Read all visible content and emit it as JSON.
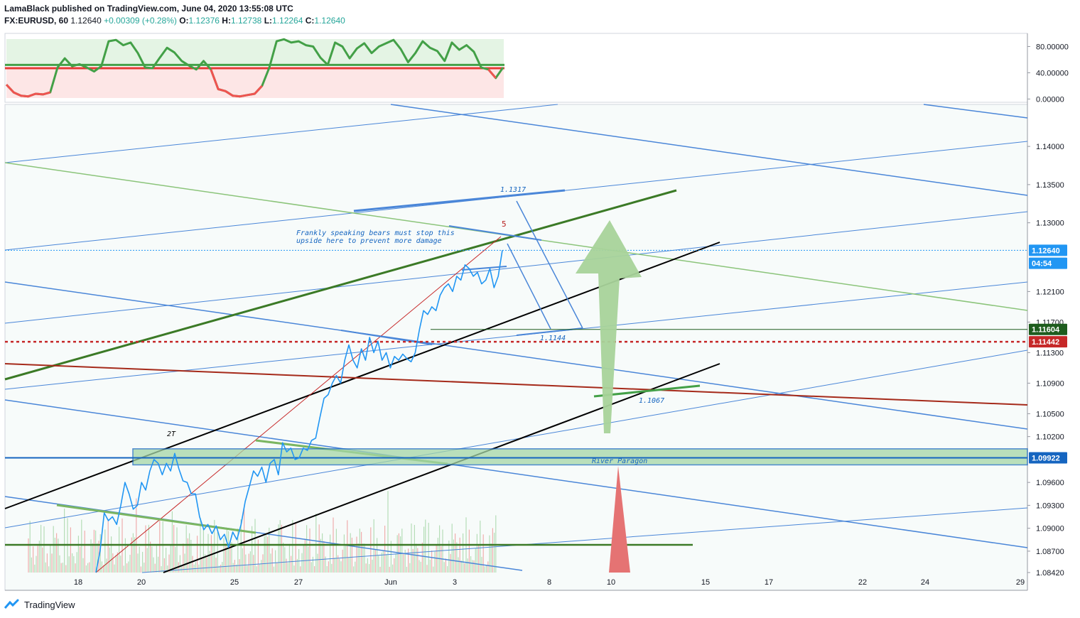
{
  "header": {
    "published": "LamaBlack published on TradingView.com, June 04, 2020 13:55:08 UTC",
    "symbol": "FX:EURUSD, 60",
    "last": "1.12640",
    "change": "+0.00309 (+0.28%)",
    "o_label": "O:",
    "o": "1.12376",
    "h_label": "H:",
    "h": "1.12738",
    "l_label": "L:",
    "l": "1.12264",
    "c_label": "C:",
    "c": "1.12640"
  },
  "footer": {
    "brand": "TradingView"
  },
  "chart_data": {
    "type": "line",
    "symbol": "FX:EURUSD, 60",
    "indicator": {
      "ylim": [
        -5,
        100
      ],
      "ticks": [
        "80.00000",
        "40.00000",
        "0.00000"
      ],
      "tick_values": [
        80,
        40,
        0
      ],
      "upper_level": 52,
      "lower_level": 47
    },
    "price_axis": {
      "ylim": [
        1.0842,
        1.1455
      ],
      "ticks": [
        "1.14000",
        "1.13500",
        "1.13000",
        "1.12100",
        "1.11700",
        "1.11300",
        "1.10900",
        "1.10500",
        "1.10200",
        "1.09600",
        "1.09300",
        "1.09000",
        "1.08700",
        "1.08420"
      ],
      "tick_values": [
        1.14,
        1.135,
        1.13,
        1.121,
        1.117,
        1.113,
        1.109,
        1.105,
        1.102,
        1.096,
        1.093,
        1.09,
        1.087,
        1.0842
      ]
    },
    "price_labels": [
      {
        "text": "1.12640",
        "value": 1.1264,
        "color": "#2196f3"
      },
      {
        "text": "04:54",
        "value": 1.1247,
        "color": "#2196f3"
      },
      {
        "text": "1.11604",
        "value": 1.11604,
        "color": "#1e5c1e"
      },
      {
        "text": "1.11442",
        "value": 1.11442,
        "color": "#c62828"
      },
      {
        "text": "1.09922",
        "value": 1.09922,
        "color": "#1565c0"
      }
    ],
    "x_axis": {
      "ticks": [
        "18",
        "20",
        "25",
        "27",
        "Jun",
        "3",
        "8",
        "10",
        "15",
        "17",
        "22",
        "24",
        "29"
      ]
    },
    "annotations": [
      {
        "text": "1.1317",
        "color": "#1565c0"
      },
      {
        "text": "5",
        "color": "#b71c1c"
      },
      {
        "text": "Frankly speaking bears must stop this",
        "color": "#1565c0"
      },
      {
        "text": "upside here to prevent more damage",
        "color": "#1565c0"
      },
      {
        "text": "1.1144",
        "color": "#1565c0"
      },
      {
        "text": "1.1067",
        "color": "#1565c0"
      },
      {
        "text": "2T",
        "color": "#000000"
      },
      {
        "text": "River Paragon",
        "color": "#1565c0"
      }
    ],
    "levels": {
      "last_price": 1.1264,
      "resistance": 1.11604,
      "support_dotted": 1.11442,
      "zone_top": 1.1004,
      "zone_bottom": 1.0983,
      "zone_line": 1.09922,
      "horizontal_green": 1.0873
    },
    "price_series": [
      [
        1.0842,
        1.087,
        1.092,
        1.091,
        1.0915,
        1.0905,
        1.093,
        1.096,
        1.0945,
        1.0925,
        1.093,
        1.096,
        1.095,
        1.0975,
        1.099,
        1.0985,
        1.097,
        1.0985,
        1.0975,
        1.0998,
        1.0978,
        1.0962,
        1.096,
        1.0945,
        1.0945,
        1.0915,
        1.0898,
        1.0905,
        1.0893,
        1.0903,
        1.0885,
        1.0892,
        1.0875,
        1.0895,
        1.0885,
        1.0905,
        1.0935,
        1.0955,
        1.0975,
        1.0968,
        1.098,
        1.096,
        1.0985,
        1.099,
        1.097,
        1.1012,
        1.1,
        1.1005,
        1.099,
        1.0992,
        1.1005,
        1.1002,
        1.1015,
        1.1018,
        1.1045,
        1.107,
        1.1075,
        1.109,
        1.11,
        1.109,
        1.112,
        1.114,
        1.112,
        1.111,
        1.1135,
        1.112,
        1.115,
        1.113,
        1.1145,
        1.112,
        1.113,
        1.111,
        1.1125,
        1.112,
        1.1128,
        1.1122,
        1.1118,
        1.113,
        1.116,
        1.1185,
        1.118,
        1.119,
        1.1185,
        1.1205,
        1.1215,
        1.122,
        1.121,
        1.123,
        1.1225,
        1.1245,
        1.124,
        1.123,
        1.1235,
        1.122,
        1.1225,
        1.124,
        1.1215,
        1.123,
        1.1264
      ]
    ],
    "indicator_series": [
      [
        22,
        10,
        5,
        4,
        8,
        7,
        10,
        48,
        62,
        50,
        53,
        48,
        42,
        50,
        88,
        90,
        82,
        86,
        70,
        48,
        47,
        63,
        78,
        71,
        58,
        51,
        45,
        58,
        45,
        15,
        12,
        5,
        4,
        6,
        8,
        20,
        48,
        88,
        91,
        86,
        88,
        82,
        80,
        63,
        52,
        86,
        80,
        62,
        77,
        85,
        70,
        80,
        85,
        90,
        76,
        56,
        70,
        88,
        78,
        73,
        58,
        86,
        75,
        82,
        72,
        48,
        45,
        32,
        48
      ]
    ]
  }
}
